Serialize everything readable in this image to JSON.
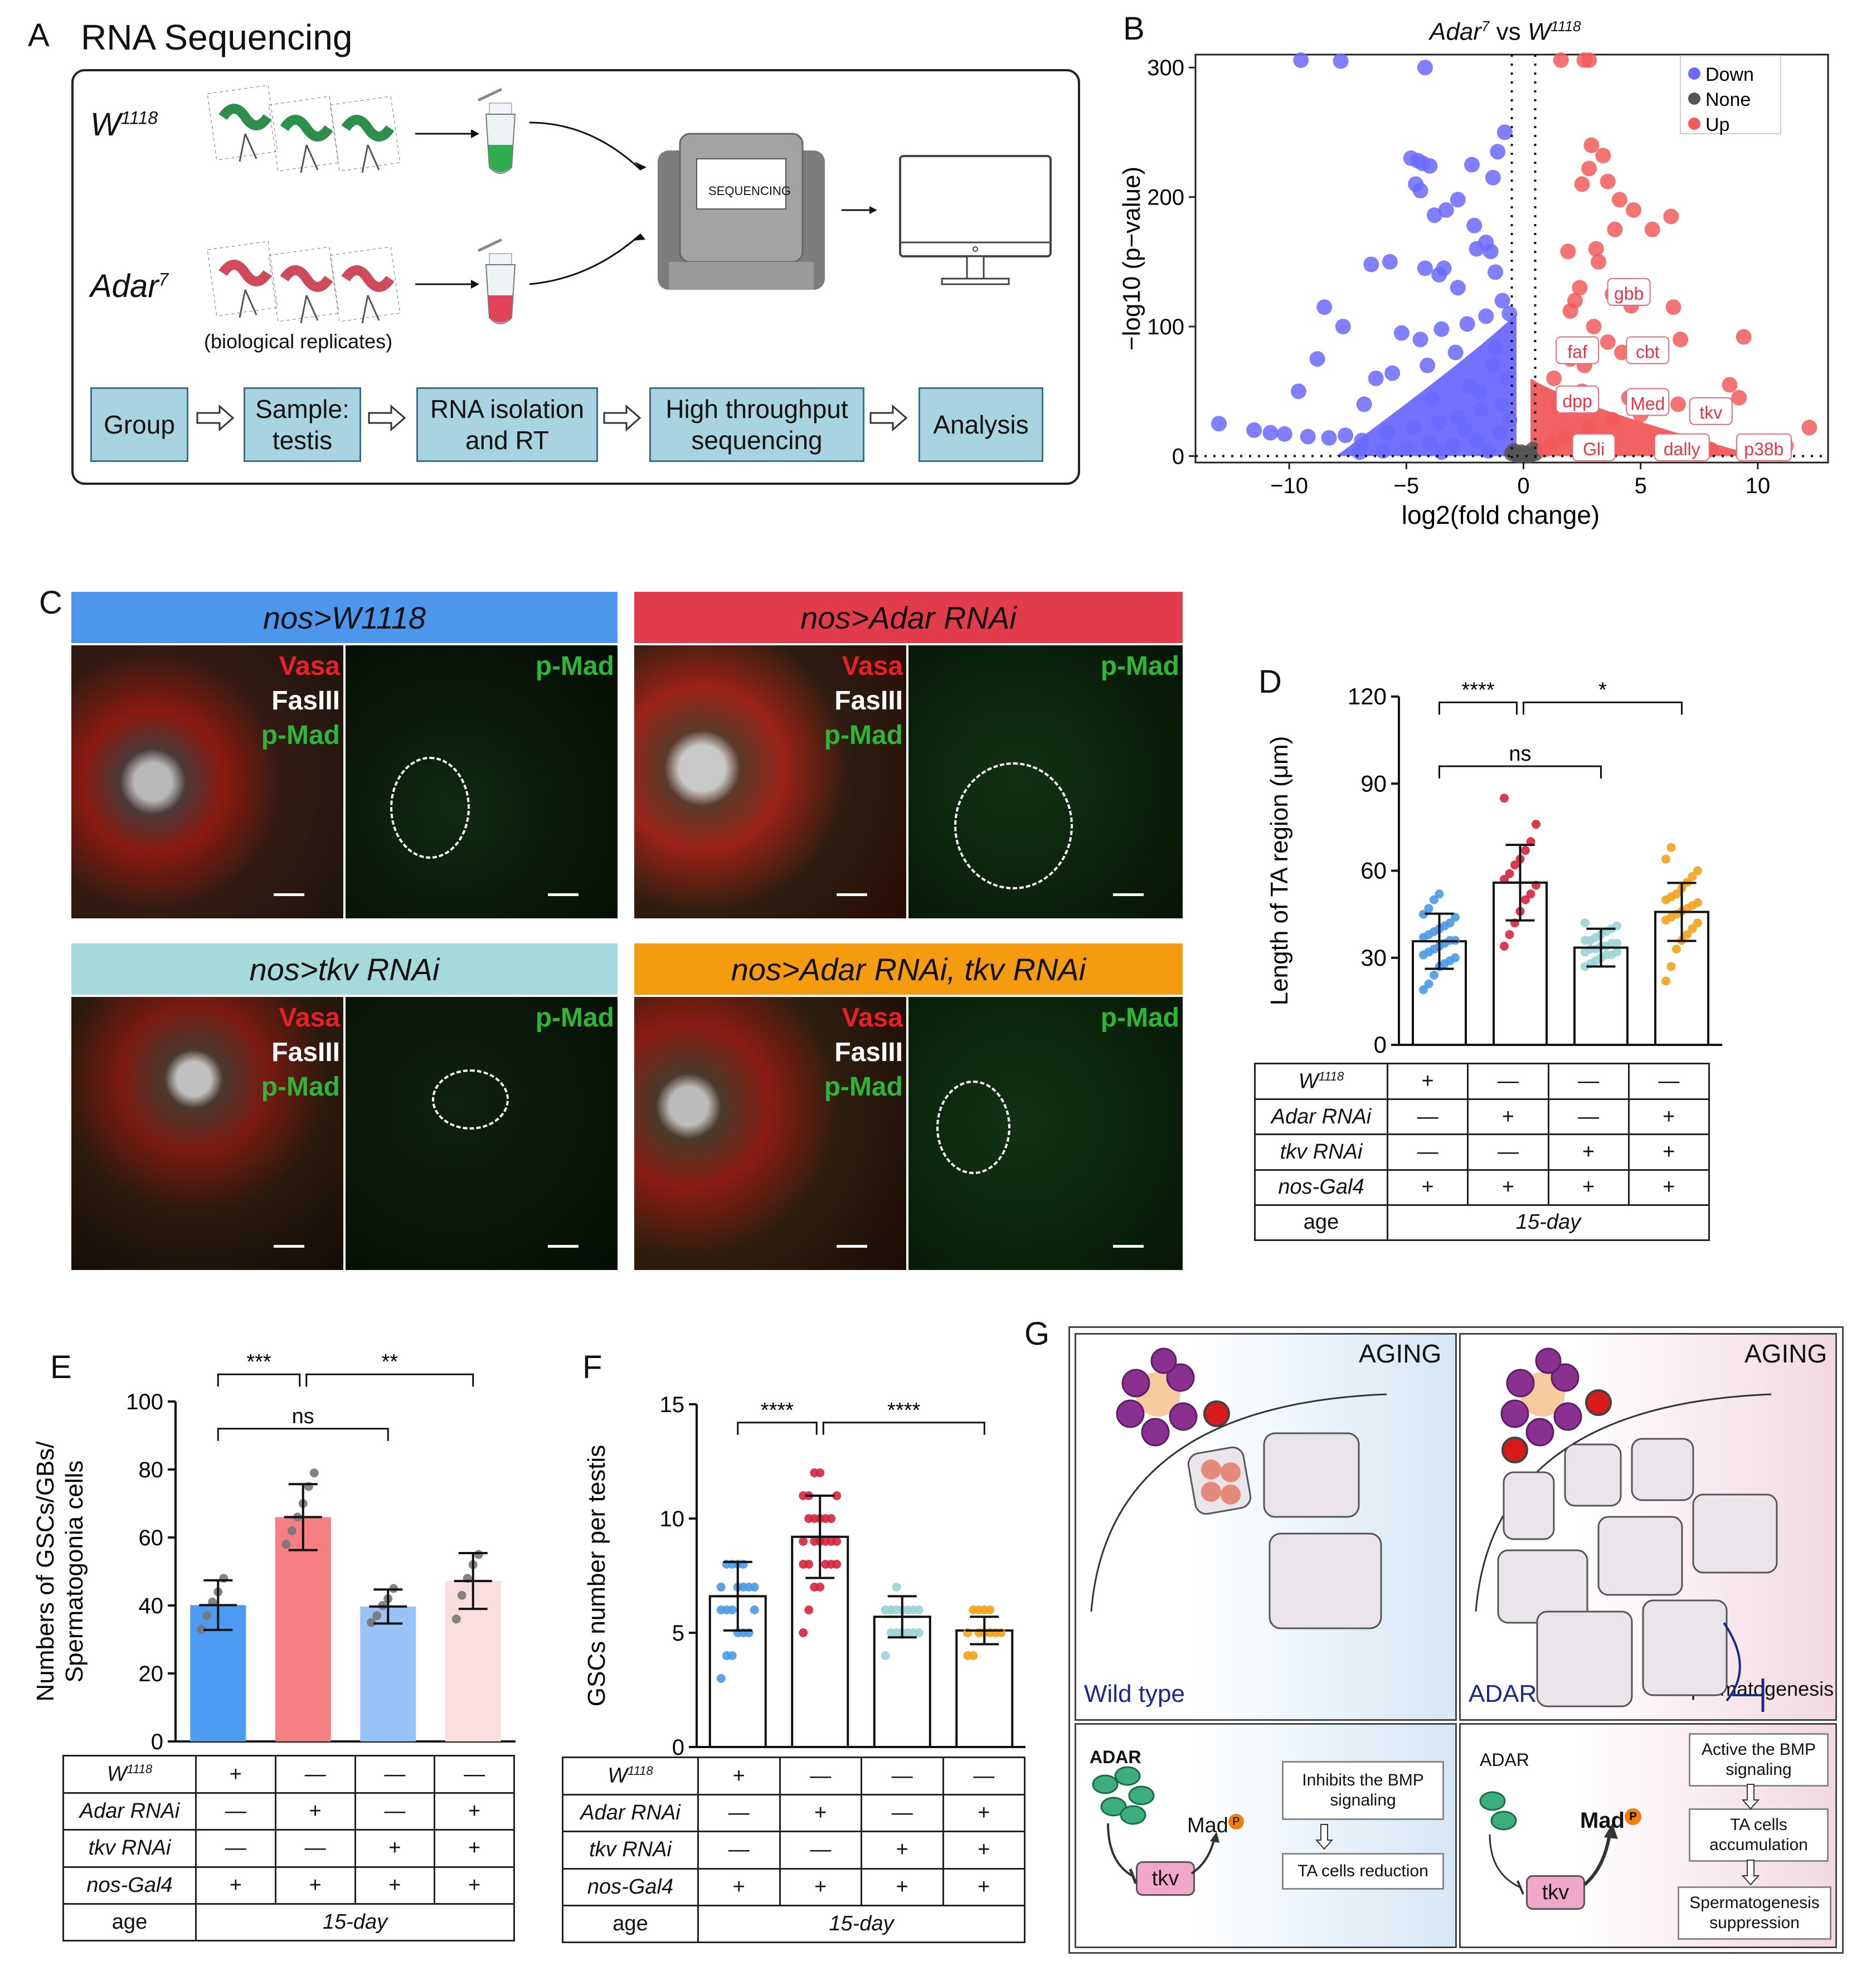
{
  "panel_letters": {
    "a": "A",
    "b": "B",
    "c": "C",
    "d": "D",
    "e": "E",
    "f": "F",
    "g": "G"
  },
  "panel_a": {
    "title": "RNA Sequencing",
    "wt_label": "W",
    "wt_sup": "1118",
    "mutant_label": "Adar",
    "mutant_sup": "7",
    "replicates_note": "(biological replicates)",
    "sequencer_label": "SEQUENCING",
    "steps": [
      "Group",
      "Sample: testis",
      "RNA isolation and RT",
      "High throughput sequencing",
      "Analysis"
    ]
  },
  "panel_b": {
    "title_left": "Adar",
    "title_left_sup": "7",
    "title_mid": "vs",
    "title_right": "W",
    "title_right_sup": "1118",
    "legend": [
      "Down",
      "None",
      "Up"
    ],
    "gene_labels": [
      "gbb",
      "faf",
      "cbt",
      "dpp",
      "Med",
      "tkv",
      "Gli",
      "dally",
      "p38b"
    ]
  },
  "panel_c": {
    "headers": [
      "nos>W1118",
      "nos>Adar RNAi",
      "nos>tkv RNAi",
      "nos>Adar RNAi, tkv RNAi"
    ],
    "stains": [
      "Vasa",
      "FasIII",
      "p-Mad"
    ],
    "single_stain": "p-Mad"
  },
  "group_table": {
    "row_labels": [
      "W1118",
      "Adar RNAi",
      "tkv RNAi",
      "nos-Gal4",
      "age"
    ],
    "rows": [
      [
        "+",
        "—",
        "—",
        "—"
      ],
      [
        "—",
        "+",
        "—",
        "+"
      ],
      [
        "—",
        "—",
        "+",
        "+"
      ],
      [
        "+",
        "+",
        "+",
        "+"
      ]
    ],
    "age": "15-day"
  },
  "panel_g": {
    "aging": "AGING",
    "wild_type": "Wild type",
    "adar_loss": "ADAR loss",
    "spermatogenesis": "Spermatogenesis",
    "adar_label": "ADAR",
    "mad_label": "Mad",
    "p_label": "P",
    "tkv_label": "tkv",
    "wt_box1": "Inhibits the BMP signaling",
    "wt_box2": "TA cells reduction",
    "loss_box1": "Active the BMP signaling",
    "loss_box2": "TA cells accumulation",
    "loss_box3": "Spermatogenesis suppression"
  },
  "chart_data": [
    {
      "panel": "B",
      "type": "scatter",
      "title": "Adar7 vs W1118",
      "xlabel": "log2(fold change)",
      "ylabel": "−log10 (p−value)",
      "xlim": [
        -14,
        13
      ],
      "ylim": [
        -5,
        310
      ],
      "xticks": [
        -10,
        -5,
        0,
        5,
        10
      ],
      "xtick_labels": [
        "−10",
        "−5",
        "0",
        "5",
        "10"
      ],
      "yticks": [
        0,
        100,
        200,
        300
      ],
      "series": [
        {
          "name": "Down",
          "color": "#6a6aff",
          "points": [
            [
              -9.5,
              310
            ],
            [
              -7.8,
              305
            ],
            [
              -4.2,
              300
            ],
            [
              -0.8,
              250
            ],
            [
              -1.1,
              235
            ],
            [
              -4.8,
              230
            ],
            [
              -4.5,
              228
            ],
            [
              -4.3,
              226
            ],
            [
              -4.0,
              224
            ],
            [
              -2.2,
              225
            ],
            [
              -1.3,
              215
            ],
            [
              -4.6,
              210
            ],
            [
              -4.4,
              205
            ],
            [
              -2.8,
              198
            ],
            [
              -3.3,
              190
            ],
            [
              -3.8,
              186
            ],
            [
              -2.1,
              178
            ],
            [
              -1.6,
              165
            ],
            [
              -1.4,
              158
            ],
            [
              -2.0,
              160
            ],
            [
              -6.5,
              148
            ],
            [
              -5.7,
              150
            ],
            [
              -4.2,
              145
            ],
            [
              -3.4,
              145
            ],
            [
              -3.6,
              140
            ],
            [
              -1.2,
              142
            ],
            [
              -2.8,
              130
            ],
            [
              -0.9,
              120
            ],
            [
              -8.5,
              115
            ],
            [
              -7.7,
              100
            ],
            [
              -5.2,
              95
            ],
            [
              -4.4,
              90
            ],
            [
              -3.5,
              98
            ],
            [
              -2.4,
              102
            ],
            [
              -1.6,
              108
            ],
            [
              -0.6,
              110
            ],
            [
              -8.8,
              75
            ],
            [
              -6.3,
              60
            ],
            [
              -5.6,
              64
            ],
            [
              -4.1,
              70
            ],
            [
              -2.9,
              80
            ],
            [
              -1.2,
              84
            ],
            [
              -9.6,
              50
            ],
            [
              -6.8,
              40
            ],
            [
              -3.9,
              44
            ],
            [
              -2.3,
              54
            ],
            [
              -13.0,
              25
            ],
            [
              -11.5,
              20
            ],
            [
              -10.8,
              18
            ],
            [
              -10.2,
              17
            ],
            [
              -9.2,
              15
            ],
            [
              -8.3,
              14
            ],
            [
              -7.6,
              16
            ],
            [
              -6.9,
              12
            ],
            [
              -5.8,
              18
            ],
            [
              -4.7,
              22
            ],
            [
              -3.6,
              26
            ],
            [
              -2.8,
              30
            ],
            [
              -1.8,
              36
            ],
            [
              -0.9,
              40
            ],
            [
              -4.0,
              10
            ],
            [
              -3.0,
              8
            ],
            [
              -2.0,
              12
            ],
            [
              -1.0,
              18
            ],
            [
              -5.0,
              6
            ],
            [
              -6.0,
              4
            ],
            [
              -7.0,
              3
            ],
            [
              -3.5,
              3
            ],
            [
              -1.5,
              4
            ],
            [
              -2.5,
              20
            ],
            [
              -0.6,
              28
            ],
            [
              -1.9,
              50
            ],
            [
              -0.7,
              60
            ],
            [
              -1.3,
              70
            ]
          ]
        },
        {
          "name": "None",
          "color": "#555555",
          "points": [
            [
              -0.5,
              2
            ],
            [
              -0.3,
              1
            ],
            [
              -0.1,
              3
            ],
            [
              0.1,
              2
            ],
            [
              0.3,
              1
            ],
            [
              0.5,
              2
            ],
            [
              -0.4,
              4
            ],
            [
              0.4,
              5
            ],
            [
              -0.2,
              0.5
            ],
            [
              0.2,
              0.5
            ]
          ]
        },
        {
          "name": "Up",
          "color": "#f25a5a",
          "points": [
            [
              1.6,
              315
            ],
            [
              2.6,
              312
            ],
            [
              2.8,
              308
            ],
            [
              2.9,
              240
            ],
            [
              3.4,
              232
            ],
            [
              2.8,
              222
            ],
            [
              3.6,
              212
            ],
            [
              2.5,
              210
            ],
            [
              4.1,
              198
            ],
            [
              4.7,
              190
            ],
            [
              3.9,
              175
            ],
            [
              5.5,
              175
            ],
            [
              6.3,
              185
            ],
            [
              3.1,
              160
            ],
            [
              1.9,
              158
            ],
            [
              3.2,
              150
            ],
            [
              2.4,
              130
            ],
            [
              3.8,
              125
            ],
            [
              2.2,
              120
            ],
            [
              4.6,
              116
            ],
            [
              2.0,
              112
            ],
            [
              6.4,
              115
            ],
            [
              6.7,
              90
            ],
            [
              9.4,
              92
            ],
            [
              3.0,
              100
            ],
            [
              3.6,
              88
            ],
            [
              4.2,
              80
            ],
            [
              2.6,
              70
            ],
            [
              5.0,
              78
            ],
            [
              8.8,
              55
            ],
            [
              9.2,
              45
            ],
            [
              12.2,
              22
            ],
            [
              6.6,
              40
            ],
            [
              5.0,
              32
            ],
            [
              3.8,
              28
            ],
            [
              2.8,
              22
            ],
            [
              1.8,
              15
            ],
            [
              1.2,
              10
            ],
            [
              0.9,
              5
            ],
            [
              7.0,
              8
            ],
            [
              8.0,
              5
            ],
            [
              10.1,
              6
            ],
            [
              11.2,
              8
            ],
            [
              2.5,
              50
            ],
            [
              1.5,
              40
            ],
            [
              4.5,
              45
            ],
            [
              1.3,
              60
            ],
            [
              2.0,
              75
            ]
          ]
        }
      ]
    },
    {
      "panel": "D",
      "type": "bar",
      "ylabel": "Length of TA region (μm)",
      "ylim": [
        0,
        120
      ],
      "yticks": [
        0,
        30,
        60,
        90,
        120
      ],
      "categories": [
        "W1118",
        "Adar RNAi",
        "tkv RNAi",
        "Adar RNAi, tkv RNAi"
      ],
      "values": [
        35.7,
        55.9,
        33.5,
        45.8
      ],
      "errors": [
        9.5,
        13.0,
        6.5,
        10.0
      ],
      "colors": [
        "#4a9ae8",
        "#d5253d",
        "#9bd4d6",
        "#f3a21b"
      ],
      "significance": [
        {
          "from": 0,
          "to": 1,
          "label": "****",
          "level": 118
        },
        {
          "from": 1,
          "to": 3,
          "label": "*",
          "level": 118
        },
        {
          "from": 0,
          "to": 2,
          "label": "ns",
          "level": 96
        }
      ],
      "points": [
        [
          19,
          21,
          24,
          27,
          28,
          29,
          30,
          31,
          32,
          33,
          34,
          35,
          36,
          36,
          37,
          38,
          39,
          40,
          41,
          42,
          44,
          45,
          47,
          50,
          52
        ],
        [
          34,
          38,
          42,
          46,
          50,
          52,
          55,
          57,
          59,
          62,
          64,
          67,
          70,
          76,
          85
        ],
        [
          27,
          28,
          29,
          30,
          31,
          31,
          32,
          32,
          33,
          33,
          34,
          34,
          35,
          35,
          36,
          36,
          37,
          38,
          39,
          40,
          41,
          42
        ],
        [
          22,
          27,
          33,
          36,
          38,
          40,
          42,
          43,
          44,
          45,
          46,
          47,
          48,
          49,
          50,
          51,
          52,
          54,
          56,
          58,
          60,
          64,
          68
        ]
      ]
    },
    {
      "panel": "E",
      "type": "bar",
      "ylabel": "Numbers of GSCs/GBs/ Spermatogonia cells",
      "ylim": [
        0,
        100
      ],
      "yticks": [
        0,
        20,
        40,
        60,
        80,
        100
      ],
      "categories": [
        "W1118",
        "Adar RNAi",
        "tkv RNAi",
        "Adar RNAi, tkv RNAi"
      ],
      "values": [
        40.1,
        66.0,
        39.7,
        47.2
      ],
      "errors": [
        7.3,
        9.7,
        5.0,
        8.2
      ],
      "colors": [
        "#4b9cf2",
        "#f57f82",
        "#97c3f6",
        "#fbdfe0"
      ],
      "significance": [
        {
          "from": 0,
          "to": 1,
          "label": "***",
          "level": 108
        },
        {
          "from": 1,
          "to": 3,
          "label": "**",
          "level": 108
        },
        {
          "from": 0,
          "to": 2,
          "label": "ns",
          "level": 92
        }
      ],
      "points": [
        [
          33,
          37,
          41,
          44,
          48
        ],
        [
          58,
          62,
          66,
          70,
          75,
          79
        ],
        [
          35,
          37,
          40,
          42,
          45
        ],
        [
          36,
          43,
          48,
          52,
          55
        ]
      ]
    },
    {
      "panel": "F",
      "type": "bar",
      "ylabel": "GSCs number per testis",
      "ylim": [
        0,
        15
      ],
      "yticks": [
        0,
        5,
        10,
        15
      ],
      "categories": [
        "W1118",
        "Adar RNAi",
        "tkv RNAi",
        "Adar RNAi, tkv RNAi"
      ],
      "values": [
        6.6,
        9.2,
        5.7,
        5.1
      ],
      "errors": [
        1.5,
        1.8,
        0.9,
        0.6
      ],
      "colors": [
        "#4a9ae8",
        "#d5253d",
        "#9bd4d6",
        "#f3a21b"
      ],
      "significance": [
        {
          "from": 0,
          "to": 1,
          "label": "****",
          "level": 14.2
        },
        {
          "from": 1,
          "to": 3,
          "label": "****",
          "level": 14.2
        }
      ],
      "points": [
        [
          3,
          4,
          4,
          5,
          5,
          5,
          6,
          6,
          6,
          6,
          7,
          7,
          7,
          7,
          7,
          8,
          8,
          8,
          8
        ],
        [
          5,
          6,
          7,
          7,
          8,
          8,
          8,
          8,
          8,
          9,
          9,
          9,
          9,
          9,
          9,
          10,
          10,
          10,
          10,
          10,
          11,
          11,
          11,
          12,
          12
        ],
        [
          4,
          5,
          5,
          5,
          5,
          5,
          5,
          6,
          6,
          6,
          6,
          6,
          6,
          6,
          6,
          6,
          7
        ],
        [
          4,
          4,
          5,
          5,
          5,
          5,
          5,
          5,
          6,
          6,
          6,
          6
        ]
      ]
    }
  ]
}
